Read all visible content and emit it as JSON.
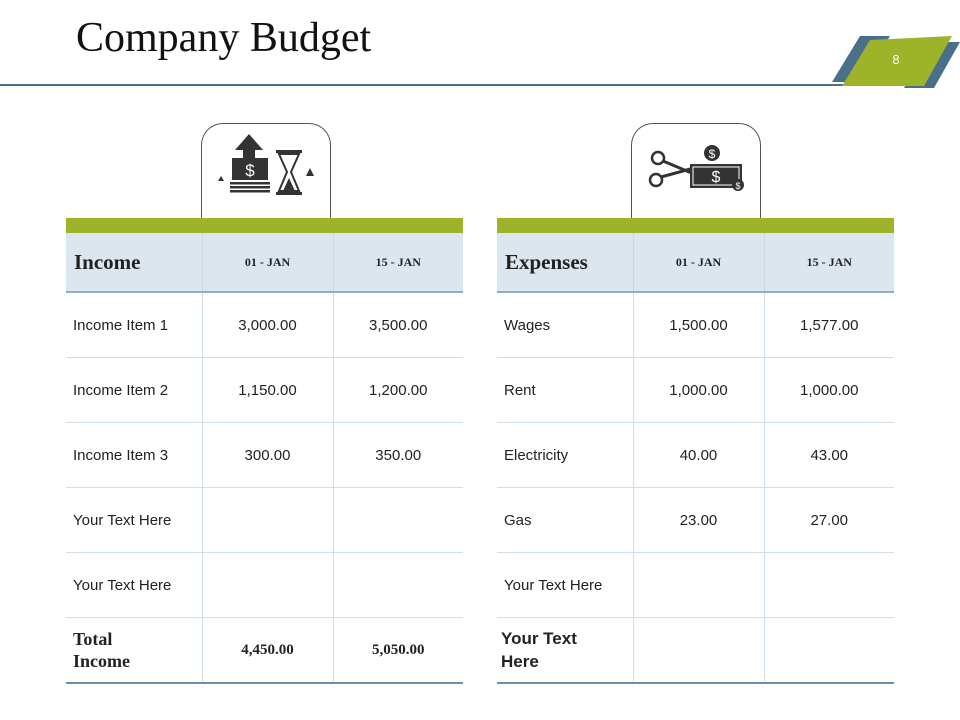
{
  "slide": {
    "title": "Company Budget",
    "number": "8"
  },
  "colors": {
    "accent_green": "#9db42a",
    "accent_blue": "#4a6f89",
    "header_fill": "#dbe6ef"
  },
  "income": {
    "icon": "money-hourglass-icon",
    "header": {
      "label": "Income",
      "col1": "01 - JAN",
      "col2": "15 - JAN"
    },
    "rows": [
      {
        "label": "Income Item 1",
        "v1": "3,000.00",
        "v2": "3,500.00"
      },
      {
        "label": "Income Item 2",
        "v1": "1,150.00",
        "v2": "1,200.00"
      },
      {
        "label": "Income Item 3",
        "v1": "300.00",
        "v2": "350.00"
      },
      {
        "label": "Your Text Here",
        "v1": "",
        "v2": ""
      },
      {
        "label": "Your Text Here",
        "v1": "",
        "v2": ""
      }
    ],
    "total": {
      "label": "Total Income",
      "v1": "4,450.00",
      "v2": "5,050.00"
    }
  },
  "expenses": {
    "icon": "scissors-money-icon",
    "header": {
      "label": "Expenses",
      "col1": "01 - JAN",
      "col2": "15 - JAN"
    },
    "rows": [
      {
        "label": "Wages",
        "v1": "1,500.00",
        "v2": "1,577.00"
      },
      {
        "label": "Rent",
        "v1": "1,000.00",
        "v2": "1,000.00"
      },
      {
        "label": "Electricity",
        "v1": "40.00",
        "v2": "43.00"
      },
      {
        "label": "Gas",
        "v1": "23.00",
        "v2": "27.00"
      },
      {
        "label": "Your Text Here",
        "v1": "",
        "v2": ""
      }
    ],
    "total": {
      "label": "Your Text Here",
      "v1": "",
      "v2": ""
    }
  }
}
